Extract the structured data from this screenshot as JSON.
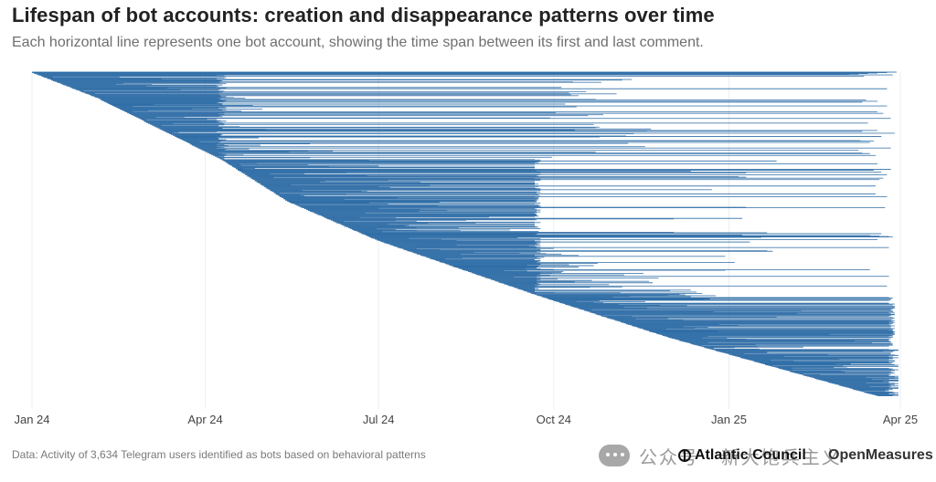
{
  "header": {
    "title": "Lifespan of bot accounts: creation and disappearance patterns over time",
    "subtitle": "Each horizontal line represents one bot account, showing the time span between its first and last comment."
  },
  "footer": {
    "source": "Data: Activity of 3,634 Telegram users identified as bots based on behavioral patterns",
    "logo_atlantic": "Atlantic Council",
    "logo_openmeasures": "OpenMeasures",
    "watermark": "公众号 · 新大饱兵主义"
  },
  "colors": {
    "line": "#2a6aa5",
    "grid": "#e9eef3",
    "tick_text": "#444444"
  },
  "chart_data": {
    "type": "range",
    "title": "Lifespan of bot accounts: creation and disappearance patterns over time",
    "subtitle": "Each horizontal line represents one bot account, showing the time span between its first and last comment.",
    "xlabel": "",
    "ylabel": "",
    "xlim": [
      "2024-01-01",
      "2025-04-01"
    ],
    "x_ticks": [
      "Jan 24",
      "Apr 24",
      "Jul 24",
      "Oct 24",
      "Jan 25",
      "Apr 25"
    ],
    "grid": true,
    "legend": "none",
    "total_accounts": 3634,
    "cohorts": [
      {
        "first_comment": [
          "2024-01-01",
          "2024-04-10"
        ],
        "last_comment_share": {
          "2024-04-10": 0.55,
          "2024-06-15": 0.15,
          "2024-09-23": 0.12,
          "2025-03-30": 0.08
        },
        "share_of_accounts": 0.27
      },
      {
        "first_comment": [
          "2024-04-10",
          "2024-09-23"
        ],
        "last_comment_share": {
          "2024-06-15": 0.3,
          "2024-09-23": 0.45,
          "2025-03-30": 0.1
        },
        "share_of_accounts": 0.42
      },
      {
        "first_comment": [
          "2024-09-23",
          "2025-03-30"
        ],
        "last_comment_share": {
          "2024-11-20": 0.12,
          "2025-02-15": 0.2,
          "2025-03-30": 0.55
        },
        "share_of_accounts": 0.31
      }
    ],
    "notable_endpoints": [
      "2024-04-10",
      "2024-09-23",
      "2025-03-30"
    ]
  }
}
